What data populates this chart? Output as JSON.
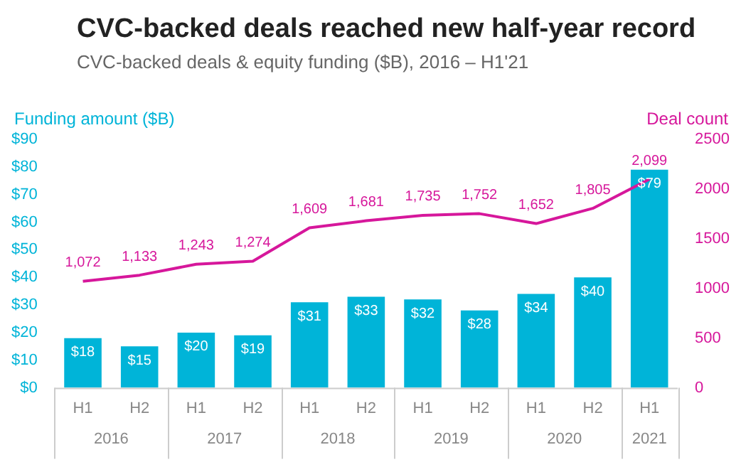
{
  "chart_data": {
    "type": "bar",
    "title": "CVC-backed deals reached new half-year record",
    "subtitle": "CVC-backed deals & equity funding ($B), 2016 – H1'21",
    "ylabel": "Funding amount ($B)",
    "y2label": "Deal count",
    "categories": [
      "H1",
      "H2",
      "H1",
      "H2",
      "H1",
      "H2",
      "H1",
      "H2",
      "H1",
      "H2",
      "H1"
    ],
    "annotations": [
      "2016",
      "2017",
      "2018",
      "2019",
      "2020",
      "2021"
    ],
    "series": [
      {
        "color": "#00b4d8",
        "values": [
          18,
          15,
          20,
          19,
          31,
          33,
          32,
          28,
          34,
          40,
          79
        ],
        "value_labels": [
          "$18",
          "$15",
          "$20",
          "$19",
          "$31",
          "$33",
          "$32",
          "$28",
          "$34",
          "$40",
          "$79"
        ]
      },
      {
        "type": "line",
        "axis": "y2",
        "color": "#d6179b",
        "values": [
          1072,
          1133,
          1243,
          1274,
          1609,
          1681,
          1735,
          1752,
          1652,
          1805,
          2099
        ],
        "value_labels": [
          "1,072",
          "1,133",
          "1,243",
          "1,274",
          "1,609",
          "1,681",
          "1,735",
          "1,752",
          "1,652",
          "1,805",
          "2,099"
        ]
      }
    ],
    "ylim": [
      0,
      90
    ],
    "yticks": [
      {
        "value": 0,
        "label": "$0"
      },
      {
        "value": 10,
        "label": "$10"
      },
      {
        "value": 20,
        "label": "$20"
      },
      {
        "value": 30,
        "label": "$30"
      },
      {
        "value": 40,
        "label": "$40"
      },
      {
        "value": 50,
        "label": "$50"
      },
      {
        "value": 60,
        "label": "$60"
      },
      {
        "value": 70,
        "label": "$70"
      },
      {
        "value": 80,
        "label": "$80"
      },
      {
        "value": 90,
        "label": "$90"
      }
    ],
    "y2lim": [
      0,
      2500
    ],
    "y2ticks": [
      0,
      500,
      1000,
      1500,
      2000,
      2500
    ],
    "grid": false,
    "legend": false,
    "marker": "none",
    "line_style": "solid"
  }
}
